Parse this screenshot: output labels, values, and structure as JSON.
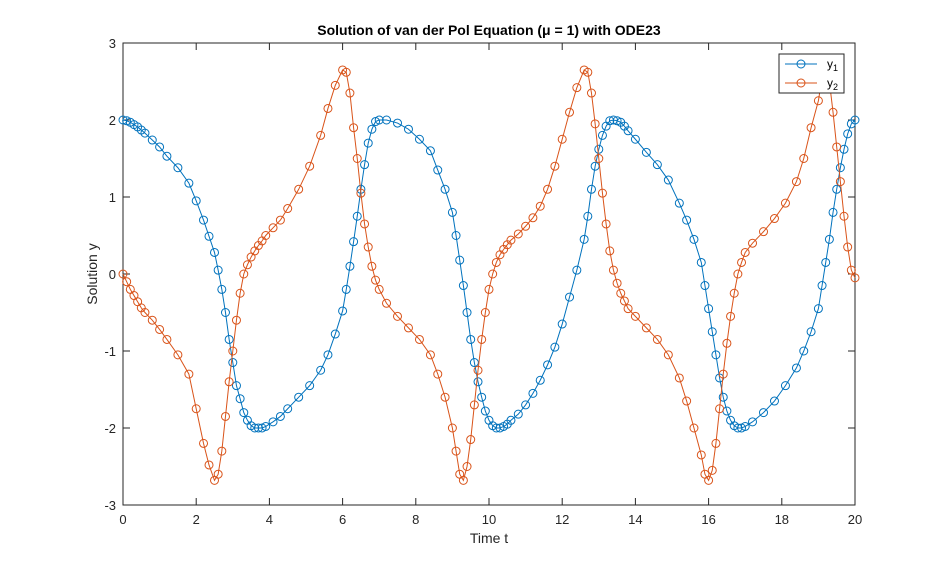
{
  "chart_data": {
    "type": "line",
    "title": "Solution of van der Pol Equation (μ = 1) with ODE23",
    "xlabel": "Time t",
    "ylabel": "Solution y",
    "xlim": [
      0,
      20
    ],
    "ylim": [
      -3,
      3
    ],
    "x_ticks": [
      0,
      2,
      4,
      6,
      8,
      10,
      12,
      14,
      16,
      18,
      20
    ],
    "y_ticks": [
      -3,
      -2,
      -1,
      0,
      1,
      2,
      3
    ],
    "x_tick_labels": [
      "0",
      "2",
      "4",
      "6",
      "8",
      "10",
      "12",
      "14",
      "16",
      "18",
      "20"
    ],
    "y_tick_labels": [
      "-3",
      "-2",
      "-1",
      "0",
      "1",
      "2",
      "3"
    ],
    "grid": false,
    "legend": {
      "placement": "top-right"
    },
    "marker": "circle",
    "series": [
      {
        "name": "y1",
        "name_base": "y",
        "name_sub": "1",
        "color": "#0072BD",
        "x": [
          0.0,
          0.1,
          0.2,
          0.3,
          0.4,
          0.5,
          0.6,
          0.8,
          1.0,
          1.2,
          1.5,
          1.8,
          2.0,
          2.2,
          2.35,
          2.5,
          2.6,
          2.7,
          2.8,
          2.9,
          3.0,
          3.1,
          3.2,
          3.3,
          3.4,
          3.5,
          3.6,
          3.7,
          3.8,
          3.9,
          4.1,
          4.3,
          4.5,
          4.8,
          5.1,
          5.4,
          5.6,
          5.8,
          6.0,
          6.1,
          6.2,
          6.3,
          6.4,
          6.5,
          6.6,
          6.7,
          6.8,
          6.9,
          7.0,
          7.2,
          7.5,
          7.8,
          8.1,
          8.4,
          8.6,
          8.8,
          9.0,
          9.1,
          9.2,
          9.3,
          9.4,
          9.5,
          9.6,
          9.7,
          9.8,
          9.9,
          10.0,
          10.1,
          10.2,
          10.3,
          10.4,
          10.5,
          10.6,
          10.8,
          11.0,
          11.2,
          11.4,
          11.6,
          11.8,
          12.0,
          12.2,
          12.4,
          12.6,
          12.7,
          12.8,
          12.9,
          13.0,
          13.1,
          13.2,
          13.3,
          13.4,
          13.5,
          13.6,
          13.7,
          13.8,
          14.0,
          14.3,
          14.6,
          14.9,
          15.2,
          15.4,
          15.6,
          15.8,
          15.9,
          16.0,
          16.1,
          16.2,
          16.3,
          16.4,
          16.5,
          16.6,
          16.7,
          16.8,
          16.9,
          17.0,
          17.2,
          17.5,
          17.8,
          18.1,
          18.4,
          18.6,
          18.8,
          19.0,
          19.1,
          19.2,
          19.3,
          19.4,
          19.5,
          19.6,
          19.7,
          19.8,
          19.9,
          20.0
        ],
        "values": [
          2.0,
          1.99,
          1.97,
          1.94,
          1.91,
          1.87,
          1.83,
          1.74,
          1.65,
          1.53,
          1.38,
          1.18,
          0.95,
          0.7,
          0.49,
          0.28,
          0.05,
          -0.2,
          -0.5,
          -0.85,
          -1.15,
          -1.45,
          -1.62,
          -1.8,
          -1.9,
          -1.97,
          -2.0,
          -2.0,
          -2.0,
          -1.98,
          -1.92,
          -1.85,
          -1.75,
          -1.6,
          -1.45,
          -1.25,
          -1.05,
          -0.78,
          -0.48,
          -0.2,
          0.1,
          0.42,
          0.75,
          1.1,
          1.42,
          1.7,
          1.88,
          1.98,
          2.0,
          2.0,
          1.96,
          1.88,
          1.75,
          1.6,
          1.35,
          1.1,
          0.8,
          0.5,
          0.18,
          -0.15,
          -0.5,
          -0.85,
          -1.15,
          -1.4,
          -1.6,
          -1.78,
          -1.9,
          -1.97,
          -2.0,
          -2.0,
          -1.98,
          -1.95,
          -1.9,
          -1.82,
          -1.7,
          -1.55,
          -1.38,
          -1.18,
          -0.95,
          -0.65,
          -0.3,
          0.05,
          0.45,
          0.75,
          1.1,
          1.4,
          1.62,
          1.8,
          1.92,
          1.99,
          2.0,
          1.99,
          1.97,
          1.92,
          1.86,
          1.75,
          1.58,
          1.42,
          1.22,
          0.92,
          0.7,
          0.45,
          0.15,
          -0.15,
          -0.45,
          -0.75,
          -1.05,
          -1.35,
          -1.6,
          -1.78,
          -1.9,
          -1.97,
          -2.0,
          -2.0,
          -1.98,
          -1.92,
          -1.8,
          -1.65,
          -1.45,
          -1.22,
          -1.0,
          -0.75,
          -0.45,
          -0.15,
          0.15,
          0.45,
          0.8,
          1.1,
          1.38,
          1.62,
          1.82,
          1.95,
          2.0
        ]
      },
      {
        "name": "y2",
        "name_base": "y",
        "name_sub": "2",
        "color": "#D95319",
        "x": [
          0.0,
          0.1,
          0.2,
          0.3,
          0.4,
          0.5,
          0.6,
          0.8,
          1.0,
          1.2,
          1.5,
          1.8,
          2.0,
          2.2,
          2.35,
          2.5,
          2.6,
          2.7,
          2.8,
          2.9,
          3.0,
          3.1,
          3.2,
          3.3,
          3.4,
          3.5,
          3.6,
          3.7,
          3.8,
          3.9,
          4.1,
          4.3,
          4.5,
          4.8,
          5.1,
          5.4,
          5.6,
          5.8,
          6.0,
          6.1,
          6.2,
          6.3,
          6.4,
          6.5,
          6.6,
          6.7,
          6.8,
          6.9,
          7.0,
          7.2,
          7.5,
          7.8,
          8.1,
          8.4,
          8.6,
          8.8,
          9.0,
          9.1,
          9.2,
          9.3,
          9.4,
          9.5,
          9.6,
          9.7,
          9.8,
          9.9,
          10.0,
          10.1,
          10.2,
          10.3,
          10.4,
          10.5,
          10.6,
          10.8,
          11.0,
          11.2,
          11.4,
          11.6,
          11.8,
          12.0,
          12.2,
          12.4,
          12.6,
          12.7,
          12.8,
          12.9,
          13.0,
          13.1,
          13.2,
          13.3,
          13.4,
          13.5,
          13.6,
          13.7,
          13.8,
          14.0,
          14.3,
          14.6,
          14.9,
          15.2,
          15.4,
          15.6,
          15.8,
          15.9,
          16.0,
          16.1,
          16.2,
          16.3,
          16.4,
          16.5,
          16.6,
          16.7,
          16.8,
          16.9,
          17.0,
          17.2,
          17.5,
          17.8,
          18.1,
          18.4,
          18.6,
          18.8,
          19.0,
          19.1,
          19.2,
          19.3,
          19.4,
          19.5,
          19.6,
          19.7,
          19.8,
          19.9,
          20.0
        ],
        "values": [
          0.0,
          -0.1,
          -0.2,
          -0.28,
          -0.36,
          -0.44,
          -0.5,
          -0.6,
          -0.72,
          -0.85,
          -1.05,
          -1.3,
          -1.75,
          -2.2,
          -2.48,
          -2.68,
          -2.6,
          -2.3,
          -1.85,
          -1.4,
          -1.0,
          -0.6,
          -0.25,
          0.0,
          0.12,
          0.22,
          0.3,
          0.37,
          0.43,
          0.5,
          0.6,
          0.7,
          0.85,
          1.1,
          1.4,
          1.8,
          2.15,
          2.45,
          2.65,
          2.62,
          2.35,
          1.9,
          1.5,
          1.05,
          0.65,
          0.35,
          0.1,
          -0.08,
          -0.2,
          -0.38,
          -0.55,
          -0.7,
          -0.85,
          -1.05,
          -1.3,
          -1.6,
          -2.0,
          -2.3,
          -2.6,
          -2.68,
          -2.5,
          -2.15,
          -1.7,
          -1.25,
          -0.85,
          -0.5,
          -0.2,
          0.0,
          0.15,
          0.25,
          0.32,
          0.38,
          0.44,
          0.52,
          0.62,
          0.73,
          0.88,
          1.1,
          1.4,
          1.75,
          2.1,
          2.42,
          2.65,
          2.62,
          2.35,
          1.95,
          1.5,
          1.05,
          0.65,
          0.3,
          0.05,
          -0.12,
          -0.25,
          -0.35,
          -0.45,
          -0.55,
          -0.7,
          -0.85,
          -1.05,
          -1.35,
          -1.65,
          -2.0,
          -2.35,
          -2.6,
          -2.68,
          -2.55,
          -2.2,
          -1.75,
          -1.3,
          -0.9,
          -0.55,
          -0.25,
          0.0,
          0.15,
          0.28,
          0.4,
          0.55,
          0.72,
          0.92,
          1.2,
          1.5,
          1.9,
          2.25,
          2.55,
          2.65,
          2.5,
          2.1,
          1.65,
          1.2,
          0.75,
          0.35,
          0.05,
          -0.05
        ]
      }
    ]
  }
}
